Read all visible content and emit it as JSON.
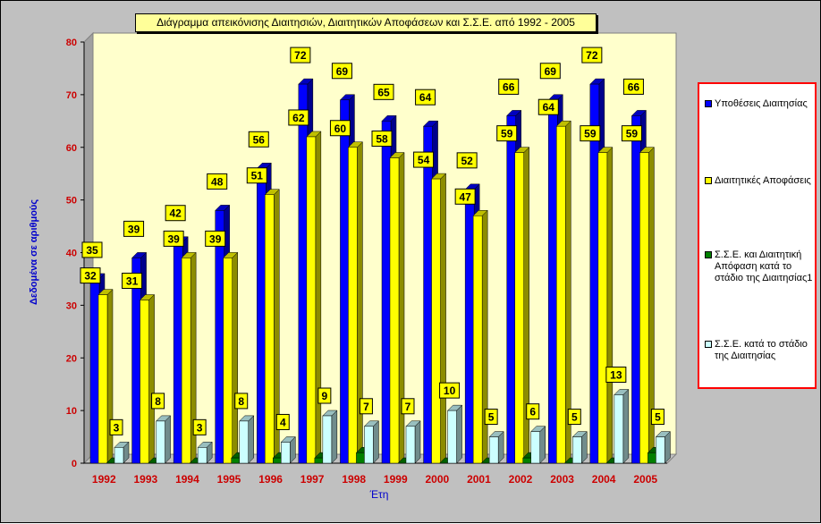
{
  "chart_data": {
    "type": "bar",
    "title": "Διάγραμμα απεικόνισης Διαιτησιών, Διαιτητικών Αποφάσεων και Σ.Σ.Ε. από 1992 - 2005",
    "xlabel": "Έτη",
    "ylabel": "Δεδομένα σε αριθμούς",
    "ylim": [
      0,
      80
    ],
    "yticks": [
      0,
      10,
      20,
      30,
      40,
      50,
      60,
      70,
      80
    ],
    "categories": [
      "1992",
      "1993",
      "1994",
      "1995",
      "1996",
      "1997",
      "1998",
      "1999",
      "2000",
      "2001",
      "2002",
      "2003",
      "2004",
      "2005"
    ],
    "series": [
      {
        "name": "Υποθέσεις Διαιτησίας",
        "color": "#0000ff",
        "values": [
          35,
          39,
          42,
          48,
          56,
          72,
          69,
          65,
          64,
          52,
          66,
          69,
          72,
          66
        ]
      },
      {
        "name": "Διαιτητικές Αποφάσεις",
        "color": "#ffff00",
        "values": [
          32,
          31,
          39,
          39,
          51,
          62,
          60,
          58,
          54,
          47,
          59,
          64,
          59,
          59
        ]
      },
      {
        "name": "Σ.Σ.Ε. και Διαιτητική Απόφαση κατά το στάδιο της Διαιτησίας1",
        "color": "#008000",
        "values": [
          0,
          0,
          0,
          1,
          1,
          1,
          2,
          0,
          0,
          0,
          1,
          0,
          0,
          2
        ]
      },
      {
        "name": "Σ.Σ.Ε. κατά το στάδιο της Διαιτησίας",
        "color": "#ccffff",
        "values": [
          3,
          8,
          3,
          8,
          4,
          9,
          7,
          7,
          10,
          5,
          6,
          5,
          13,
          5
        ]
      }
    ],
    "labeled_series": [
      0,
      1,
      3
    ],
    "legend": "right",
    "grid": false
  },
  "legend_items": [
    "Υποθέσεις Διαιτησίας",
    "Διαιτητικές Αποφάσεις",
    "Σ.Σ.Ε. και Διαιτητική Απόφαση κατά το στάδιο της Διαιτησίας1",
    "Σ.Σ.Ε. κατά το στάδιο της Διαιτησίας"
  ],
  "colors": {
    "chart_background": "#c0c0c0",
    "plot_wall": "#ffffcc",
    "floor": "#c0c0c0",
    "label_fill": "#ffff00",
    "tick_color": "#cc0000",
    "axis_title_color": "#0000cc",
    "legend_border": "#ff0000"
  }
}
